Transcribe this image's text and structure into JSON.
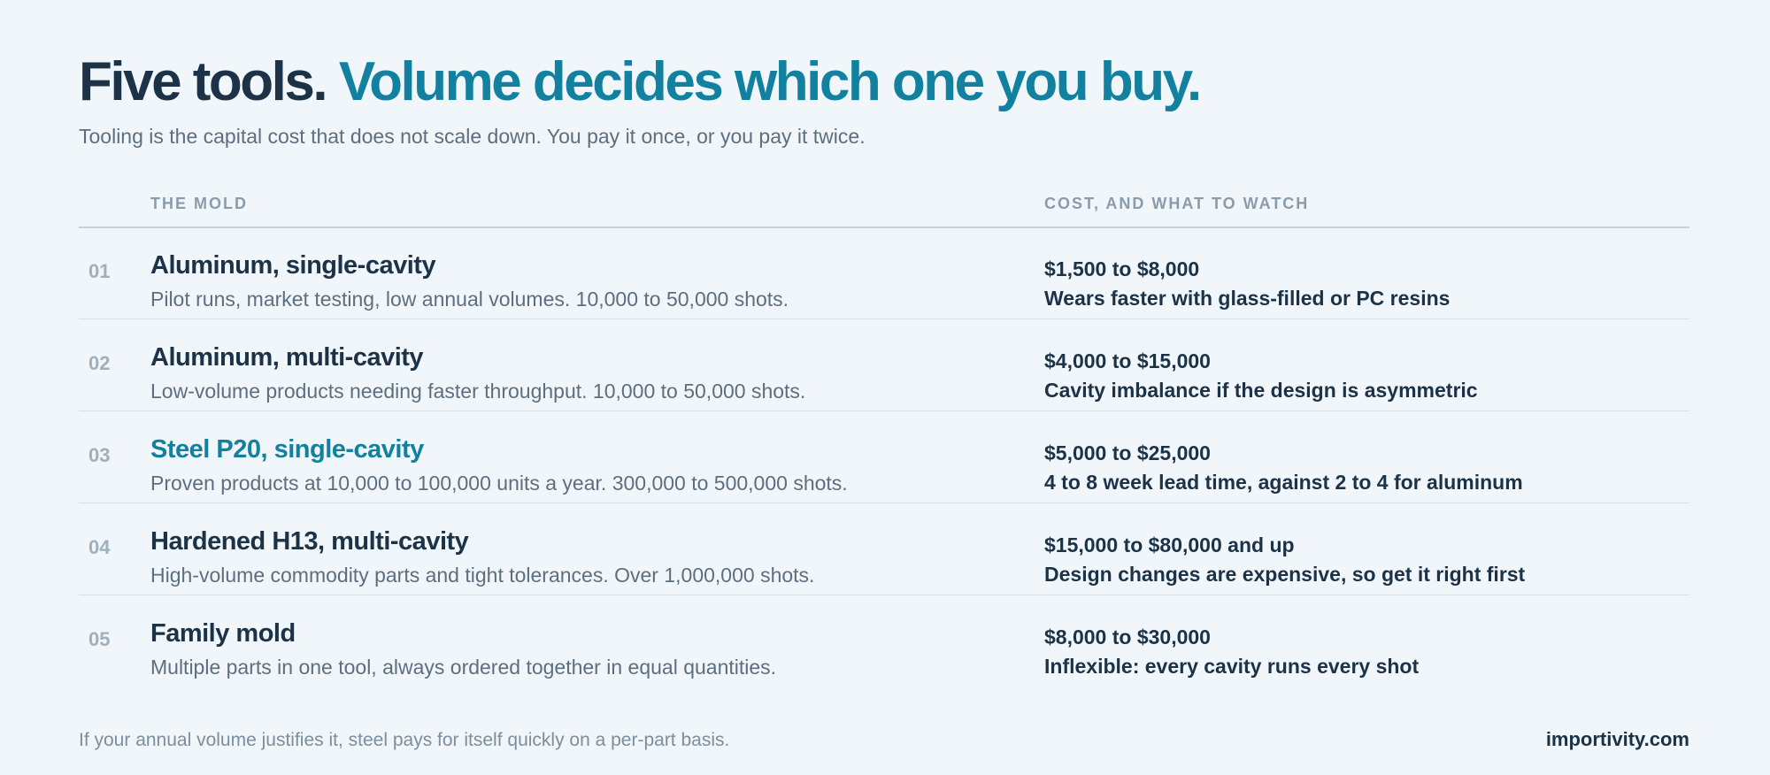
{
  "header": {
    "title_lead": "Five tools.",
    "title_accent": "Volume decides which one you buy.",
    "subtitle": "Tooling is the capital cost that does not scale down. You pay it once, or you pay it twice."
  },
  "table": {
    "columns": [
      "THE MOLD",
      "COST, AND WHAT TO WATCH"
    ],
    "rows": [
      {
        "number": "01",
        "name": "Aluminum, single-cavity",
        "description": "Pilot runs, market testing, low annual volumes. 10,000 to 50,000 shots.",
        "cost": "$1,500 to $8,000",
        "watch": "Wears faster with glass-filled or PC resins",
        "highlighted": false
      },
      {
        "number": "02",
        "name": "Aluminum, multi-cavity",
        "description": "Low-volume products needing faster throughput. 10,000 to 50,000 shots.",
        "cost": "$4,000 to $15,000",
        "watch": "Cavity imbalance if the design is asymmetric",
        "highlighted": false
      },
      {
        "number": "03",
        "name": "Steel P20, single-cavity",
        "description": "Proven products at 10,000 to 100,000 units a year. 300,000 to 500,000 shots.",
        "cost": "$5,000 to $25,000",
        "watch": "4 to 8 week lead time, against 2 to 4 for aluminum",
        "highlighted": true
      },
      {
        "number": "04",
        "name": "Hardened H13, multi-cavity",
        "description": "High-volume commodity parts and tight tolerances. Over 1,000,000 shots.",
        "cost": "$15,000 to $80,000 and up",
        "watch": "Design changes are expensive, so get it right first",
        "highlighted": false
      },
      {
        "number": "05",
        "name": "Family mold",
        "description": "Multiple parts in one tool, always ordered together in equal quantities.",
        "cost": "$8,000 to $30,000",
        "watch": "Inflexible: every cavity runs every shot",
        "highlighted": false
      }
    ]
  },
  "footer": {
    "note": "If your annual volume justifies it, steel pays for itself quickly on a per-part basis.",
    "brand": "importivity.com"
  }
}
